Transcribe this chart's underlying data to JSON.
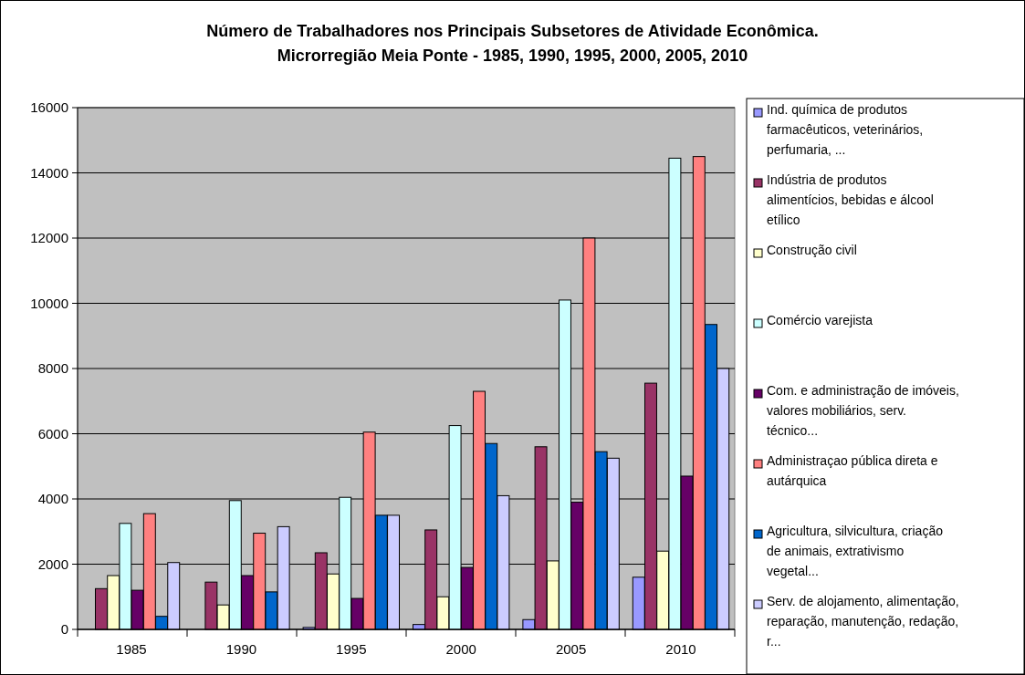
{
  "chart_data": {
    "type": "bar",
    "title": "Número de Trabalhadores nos Principais Subsetores de Atividade Econômica.\nMicrorregião Meia Ponte - 1985, 1990, 1995, 2000, 2005, 2010",
    "categories": [
      "1985",
      "1990",
      "1995",
      "2000",
      "2005",
      "2010"
    ],
    "series": [
      {
        "name": "Ind. química de produtos farmacêuticos, veterinários, perfumaria,  ...",
        "color": "#9999ff",
        "values": [
          null,
          null,
          60,
          150,
          300,
          1600
        ]
      },
      {
        "name": "Indústria de produtos alimentícios, bebidas e álcool etílico",
        "color": "#993366",
        "values": [
          1250,
          1450,
          2350,
          3050,
          5600,
          7550
        ]
      },
      {
        "name": "Construção civil",
        "color": "#ffffcc",
        "values": [
          1650,
          750,
          1700,
          1000,
          2100,
          2400
        ]
      },
      {
        "name": "Comércio varejista",
        "color": "#ccffff",
        "values": [
          3250,
          3950,
          4050,
          6250,
          10100,
          14450
        ]
      },
      {
        "name": "Com. e administração de imóveis, valores mobiliários, serv. técnico...",
        "color": "#660066",
        "values": [
          1200,
          1650,
          950,
          1900,
          3900,
          4700
        ]
      },
      {
        "name": "Administraçao pública direta e autárquica",
        "color": "#ff8080",
        "values": [
          3550,
          2950,
          6050,
          7300,
          12000,
          14500
        ]
      },
      {
        "name": "Agricultura, silvicultura, criação de animais, extrativismo vegetal...",
        "color": "#0066cc",
        "values": [
          400,
          1150,
          3500,
          5700,
          5450,
          9350
        ]
      },
      {
        "name": "Serv. de alojamento, alimentação, reparação, manutenção, redação, r...",
        "color": "#ccccff",
        "values": [
          2050,
          3150,
          3500,
          4100,
          5250,
          8000
        ]
      }
    ],
    "ylim": [
      0,
      16000
    ],
    "yticks": [
      0,
      2000,
      4000,
      6000,
      8000,
      10000,
      12000,
      14000,
      16000
    ],
    "grid": "y",
    "legend": "right"
  }
}
